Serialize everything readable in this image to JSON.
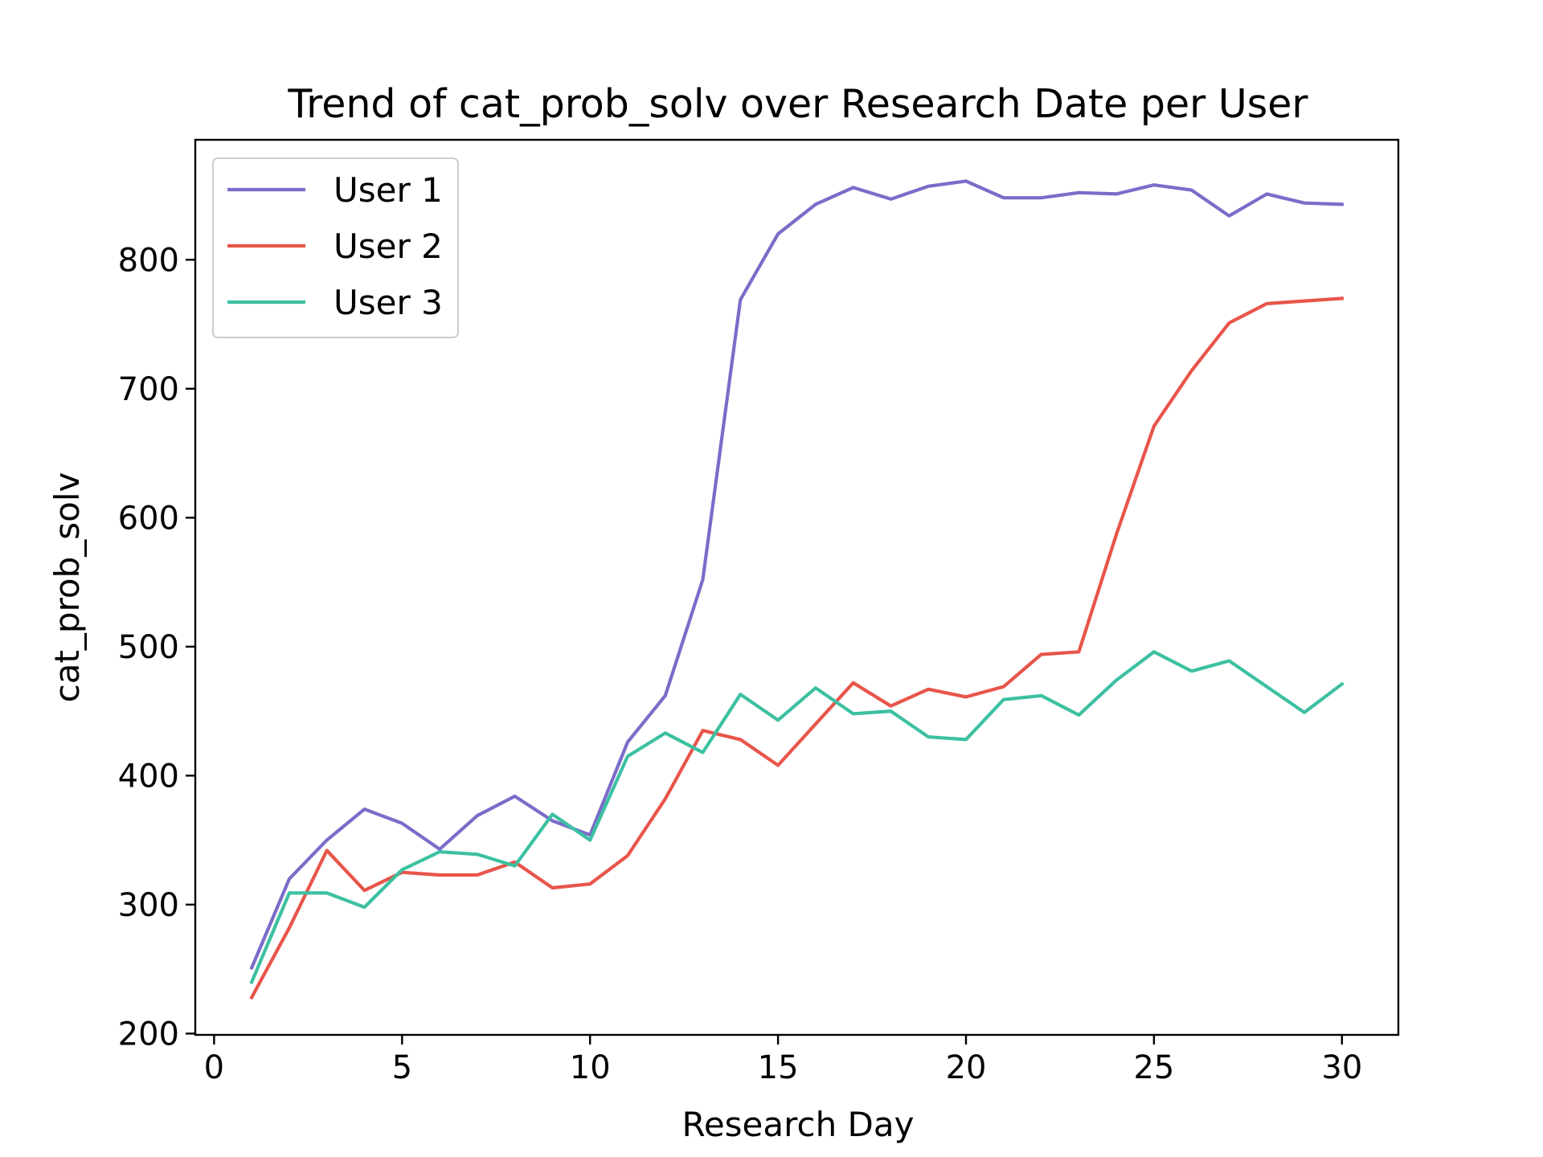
{
  "chart_data": {
    "type": "line",
    "title": "Trend of cat_prob_solv over Research Date per User",
    "xlabel": "Research Day",
    "ylabel": "cat_prob_solv",
    "xlim": [
      -0.5,
      31.5
    ],
    "ylim": [
      199,
      893
    ],
    "xticks": [
      0,
      5,
      10,
      15,
      20,
      25,
      30
    ],
    "yticks": [
      200,
      300,
      400,
      500,
      600,
      700,
      800
    ],
    "grid": false,
    "legend_position": "upper-left",
    "x": [
      1,
      2,
      3,
      4,
      5,
      6,
      7,
      8,
      9,
      10,
      11,
      12,
      13,
      14,
      15,
      16,
      17,
      18,
      19,
      20,
      21,
      22,
      23,
      24,
      25,
      26,
      27,
      28,
      29,
      30
    ],
    "series": [
      {
        "name": "User 1",
        "color": "#7b6cc9",
        "values": [
          251,
          320,
          350,
          374,
          363,
          343,
          369,
          384,
          365,
          354,
          426,
          462,
          552,
          769,
          820,
          843,
          856,
          847,
          857,
          861,
          848,
          848,
          852,
          851,
          858,
          854,
          834,
          851,
          844,
          843
        ]
      },
      {
        "name": "User 2",
        "color": "#e8554a",
        "values": [
          228,
          282,
          342,
          311,
          325,
          323,
          323,
          333,
          313,
          316,
          338,
          382,
          435,
          428,
          408,
          440,
          472,
          454,
          467,
          461,
          469,
          494,
          496,
          587,
          671,
          714,
          751,
          766,
          768,
          770
        ]
      },
      {
        "name": "User 3",
        "color": "#3cc0a2",
        "values": [
          240,
          309,
          309,
          298,
          327,
          341,
          339,
          330,
          370,
          350,
          415,
          433,
          418,
          463,
          443,
          468,
          448,
          450,
          430,
          428,
          459,
          462,
          447,
          474,
          496,
          481,
          489,
          469,
          449,
          471
        ]
      }
    ]
  }
}
